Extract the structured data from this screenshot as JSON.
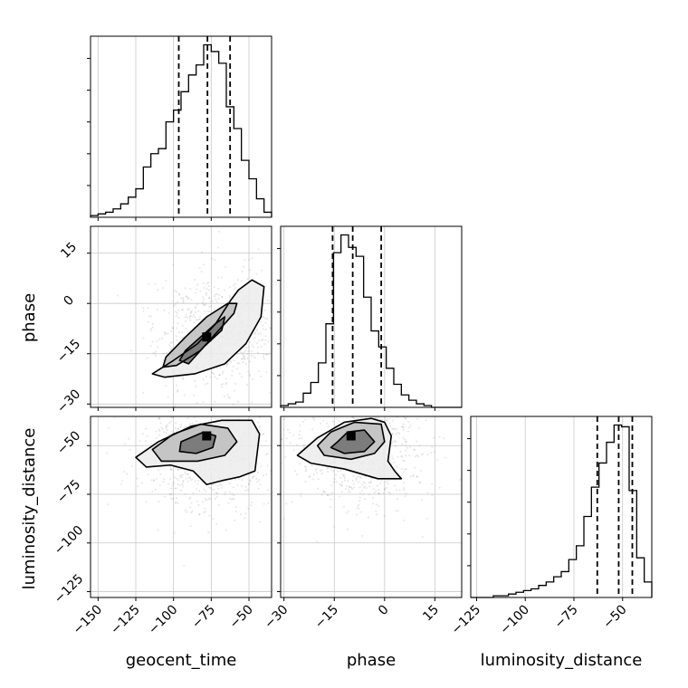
{
  "chart_data": {
    "type": "corner",
    "parameters": [
      "geocent_time",
      "phase",
      "luminosity_distance"
    ],
    "labels": [
      "geocent_time",
      "phase",
      "luminosity_distance"
    ],
    "ranges": [
      [
        -155,
        -35
      ],
      [
        -31,
        23
      ],
      [
        -128,
        -35
      ]
    ],
    "ticks": [
      {
        "values": [
          -150,
          -125,
          -100,
          -75,
          -50
        ],
        "labels": [
          "−150",
          "−125",
          "−100",
          "−75",
          "−50"
        ]
      },
      {
        "values": [
          -30,
          -15,
          0,
          15
        ],
        "labels": [
          "−30",
          "−15",
          "0",
          "15"
        ]
      },
      {
        "values": [
          -125,
          -100,
          -75,
          -50
        ],
        "labels": [
          "−125",
          "−100",
          "−75",
          "−50"
        ]
      }
    ],
    "quantiles": [
      [
        -96.5,
        -77.5,
        -62.5
      ],
      [
        -15.5,
        -9.5,
        -1.0
      ],
      [
        -63.0,
        -52.0,
        -45.0
      ]
    ],
    "histograms": [
      {
        "param": "geocent_time",
        "bin_edges": [
          -155,
          -150,
          -145,
          -140,
          -135,
          -130,
          -125,
          -120,
          -115,
          -110,
          -105,
          -100,
          -95,
          -90,
          -85,
          -80,
          -75,
          -70,
          -65,
          -60,
          -55,
          -50,
          -45,
          -40,
          -35
        ],
        "counts": [
          1,
          2,
          3,
          5,
          8,
          12,
          17,
          30,
          38,
          41,
          57,
          64,
          75,
          85,
          91,
          103,
          99,
          92,
          66,
          53,
          34,
          23,
          11,
          3
        ]
      },
      {
        "param": "phase",
        "bin_edges": [
          -31,
          -28.75,
          -26.5,
          -24.25,
          -22,
          -19.75,
          -17.5,
          -15.25,
          -13,
          -10.75,
          -8.5,
          -6.25,
          -4,
          -1.75,
          0.5,
          2.75,
          5,
          7.25,
          9.5,
          11.75,
          14,
          16.25,
          18.5,
          20.75,
          23
        ],
        "counts": [
          1,
          2,
          3,
          8,
          14,
          25,
          47,
          87,
          97,
          90,
          85,
          62,
          43,
          34,
          22,
          13,
          7,
          4,
          2,
          1,
          0,
          0,
          0,
          0
        ]
      },
      {
        "param": "luminosity_distance",
        "bin_edges": [
          -128,
          -124.125,
          -120.25,
          -116.375,
          -112.5,
          -108.625,
          -104.75,
          -100.875,
          -97,
          -93.125,
          -89.25,
          -85.375,
          -81.5,
          -77.625,
          -73.75,
          -69.875,
          -66,
          -62.125,
          -58.25,
          -54.375,
          -50.5,
          -46.625,
          -42.75,
          -38.875,
          -35
        ],
        "counts": [
          0,
          0,
          0,
          1,
          1,
          2,
          3,
          4,
          5,
          7,
          9,
          12,
          15,
          22,
          30,
          47,
          64,
          78,
          90,
          100,
          99,
          62,
          23,
          9
        ]
      }
    ],
    "contours_2d": [
      {
        "x": "geocent_time",
        "y": "phase",
        "levels": [
          [
            [
              -80,
              -13
            ],
            [
              -68,
              -8
            ],
            [
              -66,
              -4
            ],
            [
              -72,
              -6
            ],
            [
              -82,
              -10
            ],
            [
              -92,
              -14
            ],
            [
              -96,
              -17
            ],
            [
              -90,
              -18
            ]
          ],
          [
            [
              -98,
              -18.5
            ],
            [
              -82,
              -14
            ],
            [
              -70,
              -8
            ],
            [
              -60,
              -3
            ],
            [
              -58,
              0
            ],
            [
              -64,
              0
            ],
            [
              -78,
              -4
            ],
            [
              -92,
              -10
            ],
            [
              -105,
              -16
            ],
            [
              -107,
              -19
            ]
          ],
          [
            [
              -114,
              -21
            ],
            [
              -100,
              -17
            ],
            [
              -84,
              -12
            ],
            [
              -72,
              -6
            ],
            [
              -62,
              1
            ],
            [
              -57,
              4
            ],
            [
              -48,
              7
            ],
            [
              -40,
              5
            ],
            [
              -42,
              -4
            ],
            [
              -52,
              -12
            ],
            [
              -66,
              -18
            ],
            [
              -86,
              -21
            ],
            [
              -106,
              -22
            ]
          ]
        ],
        "peak": [
          -78,
          -10
        ]
      },
      {
        "x": "geocent_time",
        "y": "luminosity_distance",
        "levels": [
          [
            [
              -95,
              -48
            ],
            [
              -80,
              -43
            ],
            [
              -72,
              -45
            ],
            [
              -74,
              -51
            ],
            [
              -85,
              -54
            ],
            [
              -96,
              -53
            ]
          ],
          [
            [
              -114,
              -52
            ],
            [
              -100,
              -44
            ],
            [
              -82,
              -39
            ],
            [
              -64,
              -41
            ],
            [
              -58,
              -48
            ],
            [
              -66,
              -55
            ],
            [
              -84,
              -58
            ],
            [
              -108,
              -58
            ]
          ],
          [
            [
              -125,
              -56
            ],
            [
              -110,
              -48
            ],
            [
              -88,
              -40
            ],
            [
              -68,
              -37
            ],
            [
              -48,
              -37
            ],
            [
              -43,
              -44
            ],
            [
              -46,
              -63
            ],
            [
              -56,
              -66
            ],
            [
              -68,
              -68
            ],
            [
              -78,
              -70
            ],
            [
              -87,
              -63
            ],
            [
              -102,
              -60
            ],
            [
              -118,
              -61
            ]
          ]
        ],
        "peak": [
          -78,
          -45
        ]
      },
      {
        "x": "phase",
        "y": "luminosity_distance",
        "levels": [
          [
            [
              -14,
              -48
            ],
            [
              -11,
              -43
            ],
            [
              -6,
              -42
            ],
            [
              -3,
              -48
            ],
            [
              -6,
              -53
            ],
            [
              -12,
              -54
            ],
            [
              -16,
              -51
            ]
          ],
          [
            [
              -20,
              -50
            ],
            [
              -16,
              -43
            ],
            [
              -9,
              -38
            ],
            [
              -1,
              -39
            ],
            [
              0,
              -48
            ],
            [
              -3,
              -54
            ],
            [
              -10,
              -57
            ],
            [
              -18,
              -55
            ]
          ],
          [
            [
              -26,
              -55
            ],
            [
              -20,
              -46
            ],
            [
              -12,
              -38
            ],
            [
              -4,
              -36
            ],
            [
              0,
              -38
            ],
            [
              2,
              -45
            ],
            [
              1,
              -58
            ],
            [
              3,
              -63
            ],
            [
              5,
              -67
            ],
            [
              -2,
              -67
            ],
            [
              -12,
              -62
            ],
            [
              -22,
              -59
            ]
          ]
        ],
        "peak": [
          -10,
          -45
        ]
      }
    ]
  }
}
